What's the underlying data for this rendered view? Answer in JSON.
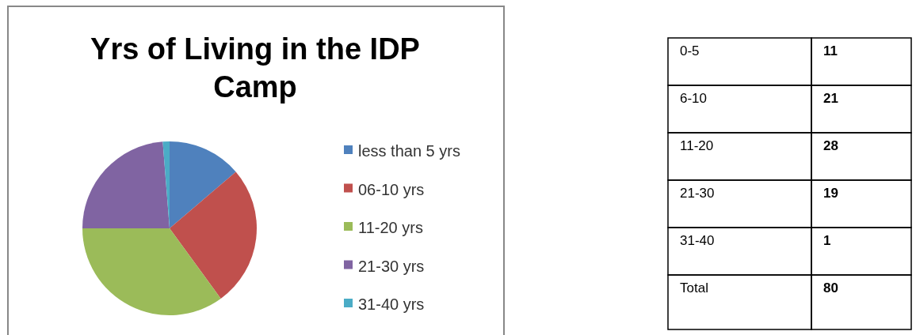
{
  "chart_data": [
    {
      "type": "pie",
      "title": "Yrs of Living in the IDP Camp",
      "categories": [
        "less than 5 yrs",
        "06-10 yrs",
        "11-20 yrs",
        "21-30 yrs",
        "31-40 yrs"
      ],
      "values": [
        13.75,
        26.25,
        35,
        23.75,
        1.25
      ],
      "colors": [
        "#4f81bd",
        "#c0504d",
        "#9bbb59",
        "#8064a2",
        "#4bacc6"
      ],
      "legend": "right"
    },
    {
      "type": "other",
      "categories": [
        "0-5",
        "6-10",
        "11-20",
        "21-30",
        "31-40",
        "Total"
      ],
      "values": [
        11,
        21,
        28,
        19,
        1,
        80
      ],
      "data_labels": true
    }
  ]
}
